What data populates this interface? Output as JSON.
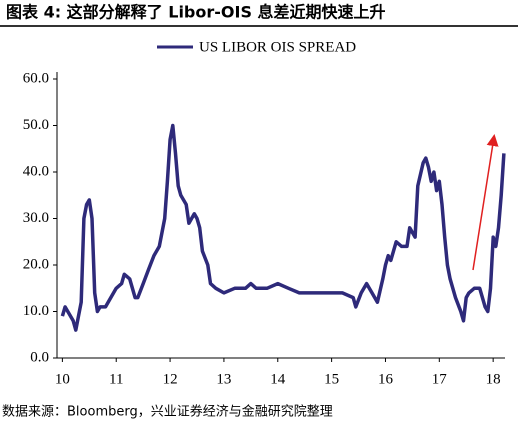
{
  "chart_data": {
    "type": "line",
    "title": "图表 4: 这部分解释了 Libor-OIS 息差近期快速上升",
    "source": "数据来源：Bloomberg，兴业证券经济与金融研究院整理",
    "x": [
      10.0,
      10.05,
      10.1,
      10.2,
      10.25,
      10.3,
      10.35,
      10.4,
      10.45,
      10.5,
      10.55,
      10.6,
      10.65,
      10.7,
      10.8,
      10.9,
      11.0,
      11.1,
      11.15,
      11.25,
      11.35,
      11.4,
      11.5,
      11.6,
      11.7,
      11.8,
      11.9,
      11.95,
      12.0,
      12.05,
      12.1,
      12.15,
      12.2,
      12.3,
      12.35,
      12.45,
      12.5,
      12.55,
      12.6,
      12.7,
      12.75,
      12.85,
      13.0,
      13.2,
      13.4,
      13.5,
      13.6,
      13.8,
      14.0,
      14.2,
      14.4,
      14.6,
      14.8,
      15.0,
      15.2,
      15.4,
      15.45,
      15.55,
      15.65,
      15.75,
      15.85,
      15.95,
      16.0,
      16.05,
      16.1,
      16.2,
      16.3,
      16.4,
      16.45,
      16.55,
      16.6,
      16.7,
      16.75,
      16.8,
      16.85,
      16.9,
      16.95,
      17.0,
      17.05,
      17.1,
      17.15,
      17.2,
      17.3,
      17.4,
      17.45,
      17.5,
      17.55,
      17.65,
      17.75,
      17.85,
      17.9,
      17.95,
      18.0,
      18.05,
      18.1,
      18.15,
      18.2
    ],
    "series": [
      {
        "name": "US LIBOR OIS SPREAD",
        "color": "#2e2a7a",
        "values": [
          9,
          11,
          10,
          8,
          6,
          9,
          12,
          30,
          33,
          34,
          30,
          14,
          10,
          11,
          11,
          13,
          15,
          16,
          18,
          17,
          13,
          13,
          16,
          19,
          22,
          24,
          30,
          38,
          47,
          50,
          44,
          37,
          35,
          33,
          29,
          31,
          30,
          28,
          23,
          20,
          16,
          15,
          14,
          15,
          15,
          16,
          15,
          15,
          16,
          15,
          14,
          14,
          14,
          14,
          14,
          13,
          11,
          14,
          16,
          14,
          12,
          17,
          20,
          22,
          21,
          25,
          24,
          24,
          28,
          26,
          37,
          42,
          43,
          41,
          38,
          40,
          36,
          38,
          33,
          26,
          20,
          17,
          13,
          10,
          8,
          13,
          14,
          15,
          15,
          11,
          10,
          15,
          26,
          24,
          28,
          35,
          44
        ]
      }
    ],
    "xlim": [
      9.9,
      18.22
    ],
    "xticks": [
      10,
      11,
      12,
      13,
      14,
      15,
      16,
      17,
      18
    ],
    "ylim": [
      0,
      60
    ],
    "yticks": [
      {
        "value": 0,
        "label": "0.0"
      },
      {
        "value": 10,
        "label": "10.0"
      },
      {
        "value": 20,
        "label": "20.0"
      },
      {
        "value": 30,
        "label": "30.0"
      },
      {
        "value": 40,
        "label": "40.0"
      },
      {
        "value": 50,
        "label": "50.0"
      },
      {
        "value": 60,
        "label": "60.0"
      }
    ]
  }
}
